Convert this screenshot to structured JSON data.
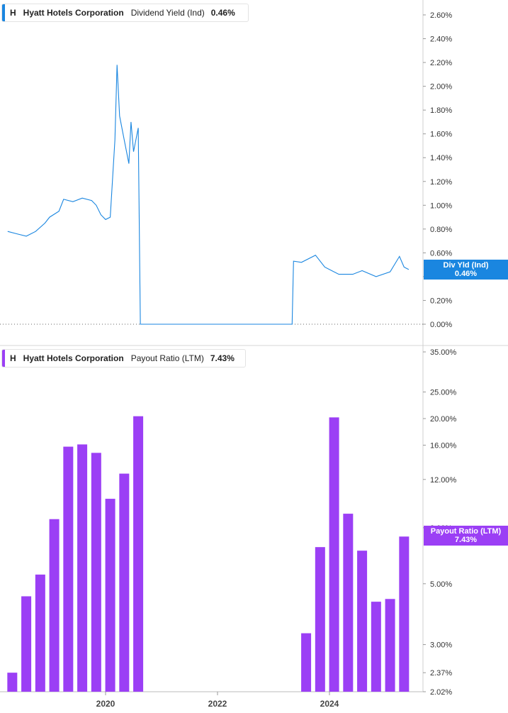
{
  "top_panel": {
    "legend": {
      "ticker": "H",
      "company": "Hyatt Hotels Corporation",
      "metric": "Dividend Yield (Ind)",
      "value": "0.46%"
    },
    "tag": {
      "label": "Div Yld (Ind)",
      "value": "0.46%"
    },
    "color": "#1a86e0"
  },
  "bottom_panel": {
    "legend": {
      "ticker": "H",
      "company": "Hyatt Hotels Corporation",
      "metric": "Payout Ratio (LTM)",
      "value": "7.43%"
    },
    "tag": {
      "label": "Payout Ratio (LTM)",
      "value": "7.43%"
    },
    "color": "#9b3ff5"
  },
  "x_axis": {
    "tick_labels": [
      "2020",
      "2022",
      "2024"
    ]
  },
  "chart_data": [
    {
      "type": "line",
      "series": [
        {
          "name": "Dividend Yield (Ind)",
          "points": [
            [
              "2018-04",
              0.78
            ],
            [
              "2018-06",
              0.76
            ],
            [
              "2018-08",
              0.74
            ],
            [
              "2018-10",
              0.78
            ],
            [
              "2018-12",
              0.85
            ],
            [
              "2019-01",
              0.9
            ],
            [
              "2019-03",
              0.95
            ],
            [
              "2019-04",
              1.05
            ],
            [
              "2019-06",
              1.03
            ],
            [
              "2019-08",
              1.06
            ],
            [
              "2019-10",
              1.04
            ],
            [
              "2019-11",
              1.0
            ],
            [
              "2019-12",
              0.92
            ],
            [
              "2020-01",
              0.88
            ],
            [
              "2020-02",
              0.9
            ],
            [
              "2020-03",
              1.55
            ],
            [
              "2020-03-15",
              2.18
            ],
            [
              "2020-04",
              1.75
            ],
            [
              "2020-05",
              1.55
            ],
            [
              "2020-06",
              1.35
            ],
            [
              "2020-06-15",
              1.7
            ],
            [
              "2020-07",
              1.45
            ],
            [
              "2020-08",
              1.65
            ],
            [
              "2020-08-15",
              0.0
            ],
            [
              "2023-05",
              0.0
            ],
            [
              "2023-05-10",
              0.53
            ],
            [
              "2023-07",
              0.52
            ],
            [
              "2023-10",
              0.58
            ],
            [
              "2023-12",
              0.48
            ],
            [
              "2024-03",
              0.42
            ],
            [
              "2024-06",
              0.42
            ],
            [
              "2024-08",
              0.45
            ],
            [
              "2024-11",
              0.4
            ],
            [
              "2025-02",
              0.44
            ],
            [
              "2025-04",
              0.57
            ],
            [
              "2025-05",
              0.48
            ],
            [
              "2025-06",
              0.46
            ]
          ]
        }
      ],
      "ylim": [
        0,
        2.7
      ],
      "y_ticks": [
        "0.00%",
        "0.20%",
        "0.40%",
        "0.60%",
        "0.80%",
        "1.00%",
        "1.20%",
        "1.40%",
        "1.60%",
        "1.80%",
        "2.00%",
        "2.20%",
        "2.40%",
        "2.60%"
      ],
      "y_tick_values": [
        0,
        0.2,
        0.4,
        0.6,
        0.8,
        1.0,
        1.2,
        1.4,
        1.6,
        1.8,
        2.0,
        2.2,
        2.4,
        2.6
      ],
      "grid": false
    },
    {
      "type": "bar",
      "y_scale": "log",
      "series": [
        {
          "name": "Payout Ratio (LTM)",
          "categories": [
            "2018-Q2",
            "2018-Q3",
            "2018-Q4",
            "2019-Q1",
            "2019-Q2",
            "2019-Q3",
            "2019-Q4",
            "2020-Q1",
            "2020-Q2",
            "2020-Q3",
            "2023-Q3",
            "2023-Q4",
            "2024-Q1",
            "2024-Q2",
            "2024-Q3",
            "2024-Q4",
            "2025-Q1",
            "2025-Q2"
          ],
          "x": [
            "2018-05",
            "2018-08",
            "2018-11",
            "2019-02",
            "2019-05",
            "2019-08",
            "2019-11",
            "2020-02",
            "2020-05",
            "2020-08",
            "2023-08",
            "2023-11",
            "2024-02",
            "2024-05",
            "2024-08",
            "2024-11",
            "2025-02",
            "2025-05"
          ],
          "values": [
            2.37,
            4.5,
            5.4,
            8.6,
            15.8,
            16.1,
            15.0,
            10.2,
            12.6,
            20.4,
            3.3,
            6.8,
            20.2,
            9.0,
            6.6,
            4.3,
            4.4,
            7.43
          ]
        }
      ],
      "ylim": [
        2.02,
        40
      ],
      "y_ticks": [
        "2.02%",
        "2.37%",
        "3.00%",
        "5.00%",
        "8.00%",
        "12.00%",
        "16.00%",
        "20.00%",
        "25.00%",
        "35.00%"
      ],
      "y_tick_values": [
        2.02,
        2.37,
        3,
        5,
        8,
        12,
        16,
        20,
        25,
        35
      ],
      "grid": false
    }
  ]
}
